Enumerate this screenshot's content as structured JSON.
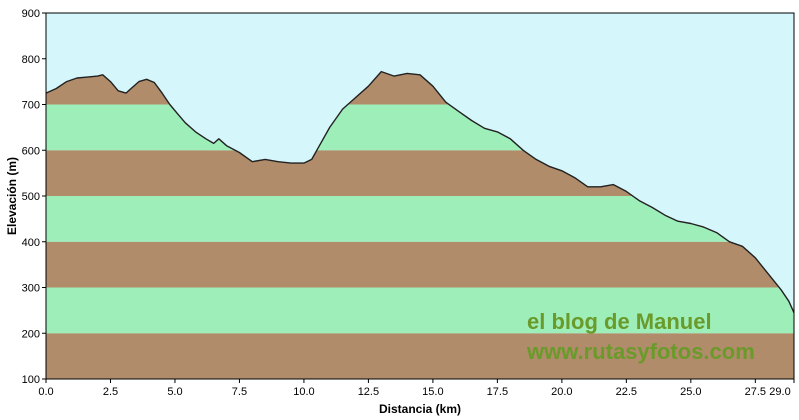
{
  "chart_data": {
    "type": "area",
    "xlabel": "Distancia  (km)",
    "ylabel": "Elevación  (m)",
    "xlim": [
      0,
      29
    ],
    "ylim": [
      100,
      900
    ],
    "x_ticks": [
      0,
      2.5,
      5,
      7.5,
      10,
      12.5,
      15,
      17.5,
      20,
      22.5,
      25,
      27.5,
      29
    ],
    "x_tick_labels": [
      "0.0",
      "2.5",
      "5.0",
      "7.5",
      "10.0",
      "12.5",
      "15.0",
      "17.5",
      "20.0",
      "22.5",
      "25.0",
      "27.5",
      "29.0"
    ],
    "y_ticks": [
      100,
      200,
      300,
      400,
      500,
      600,
      700,
      800,
      900
    ],
    "y_tick_labels": [
      "100",
      "200",
      "300",
      "400",
      "500",
      "600",
      "700",
      "800",
      "900"
    ],
    "band_colors": [
      "#b08c6a",
      "#9eeeba"
    ],
    "sky_color": "#d5f6fa",
    "line_color": "#222222",
    "series": [
      {
        "x": [
          0,
          0.4,
          0.8,
          1.2,
          1.6,
          2.0,
          2.2,
          2.5,
          2.8,
          3.1,
          3.3,
          3.6,
          3.9,
          4.2,
          4.5,
          4.8,
          5.1,
          5.4,
          5.8,
          6.2,
          6.5,
          6.7,
          7.0,
          7.5,
          8.0,
          8.5,
          9.0,
          9.5,
          10.0,
          10.3,
          10.6,
          11.0,
          11.5,
          12.0,
          12.5,
          13.0,
          13.5,
          14.0,
          14.5,
          15.0,
          15.5,
          16.0,
          16.5,
          17.0,
          17.5,
          18.0,
          18.5,
          19.0,
          19.5,
          20.0,
          20.5,
          21.0,
          21.5,
          22.0,
          22.5,
          23.0,
          23.5,
          24.0,
          24.5,
          25.0,
          25.5,
          26.0,
          26.5,
          27.0,
          27.5,
          28.0,
          28.5,
          28.8,
          29.0
        ],
        "y": [
          725,
          735,
          750,
          758,
          760,
          762,
          765,
          750,
          730,
          725,
          735,
          750,
          755,
          748,
          725,
          700,
          680,
          660,
          640,
          625,
          615,
          625,
          610,
          595,
          575,
          580,
          575,
          572,
          572,
          580,
          610,
          650,
          690,
          715,
          740,
          772,
          762,
          768,
          765,
          740,
          705,
          685,
          665,
          648,
          640,
          625,
          600,
          580,
          565,
          555,
          540,
          520,
          520,
          525,
          510,
          490,
          475,
          458,
          445,
          440,
          432,
          420,
          400,
          390,
          365,
          330,
          295,
          270,
          245
        ]
      }
    ]
  },
  "watermark": {
    "line1": "el blog de Manuel",
    "line2": "www.rutasyfotos.com"
  }
}
